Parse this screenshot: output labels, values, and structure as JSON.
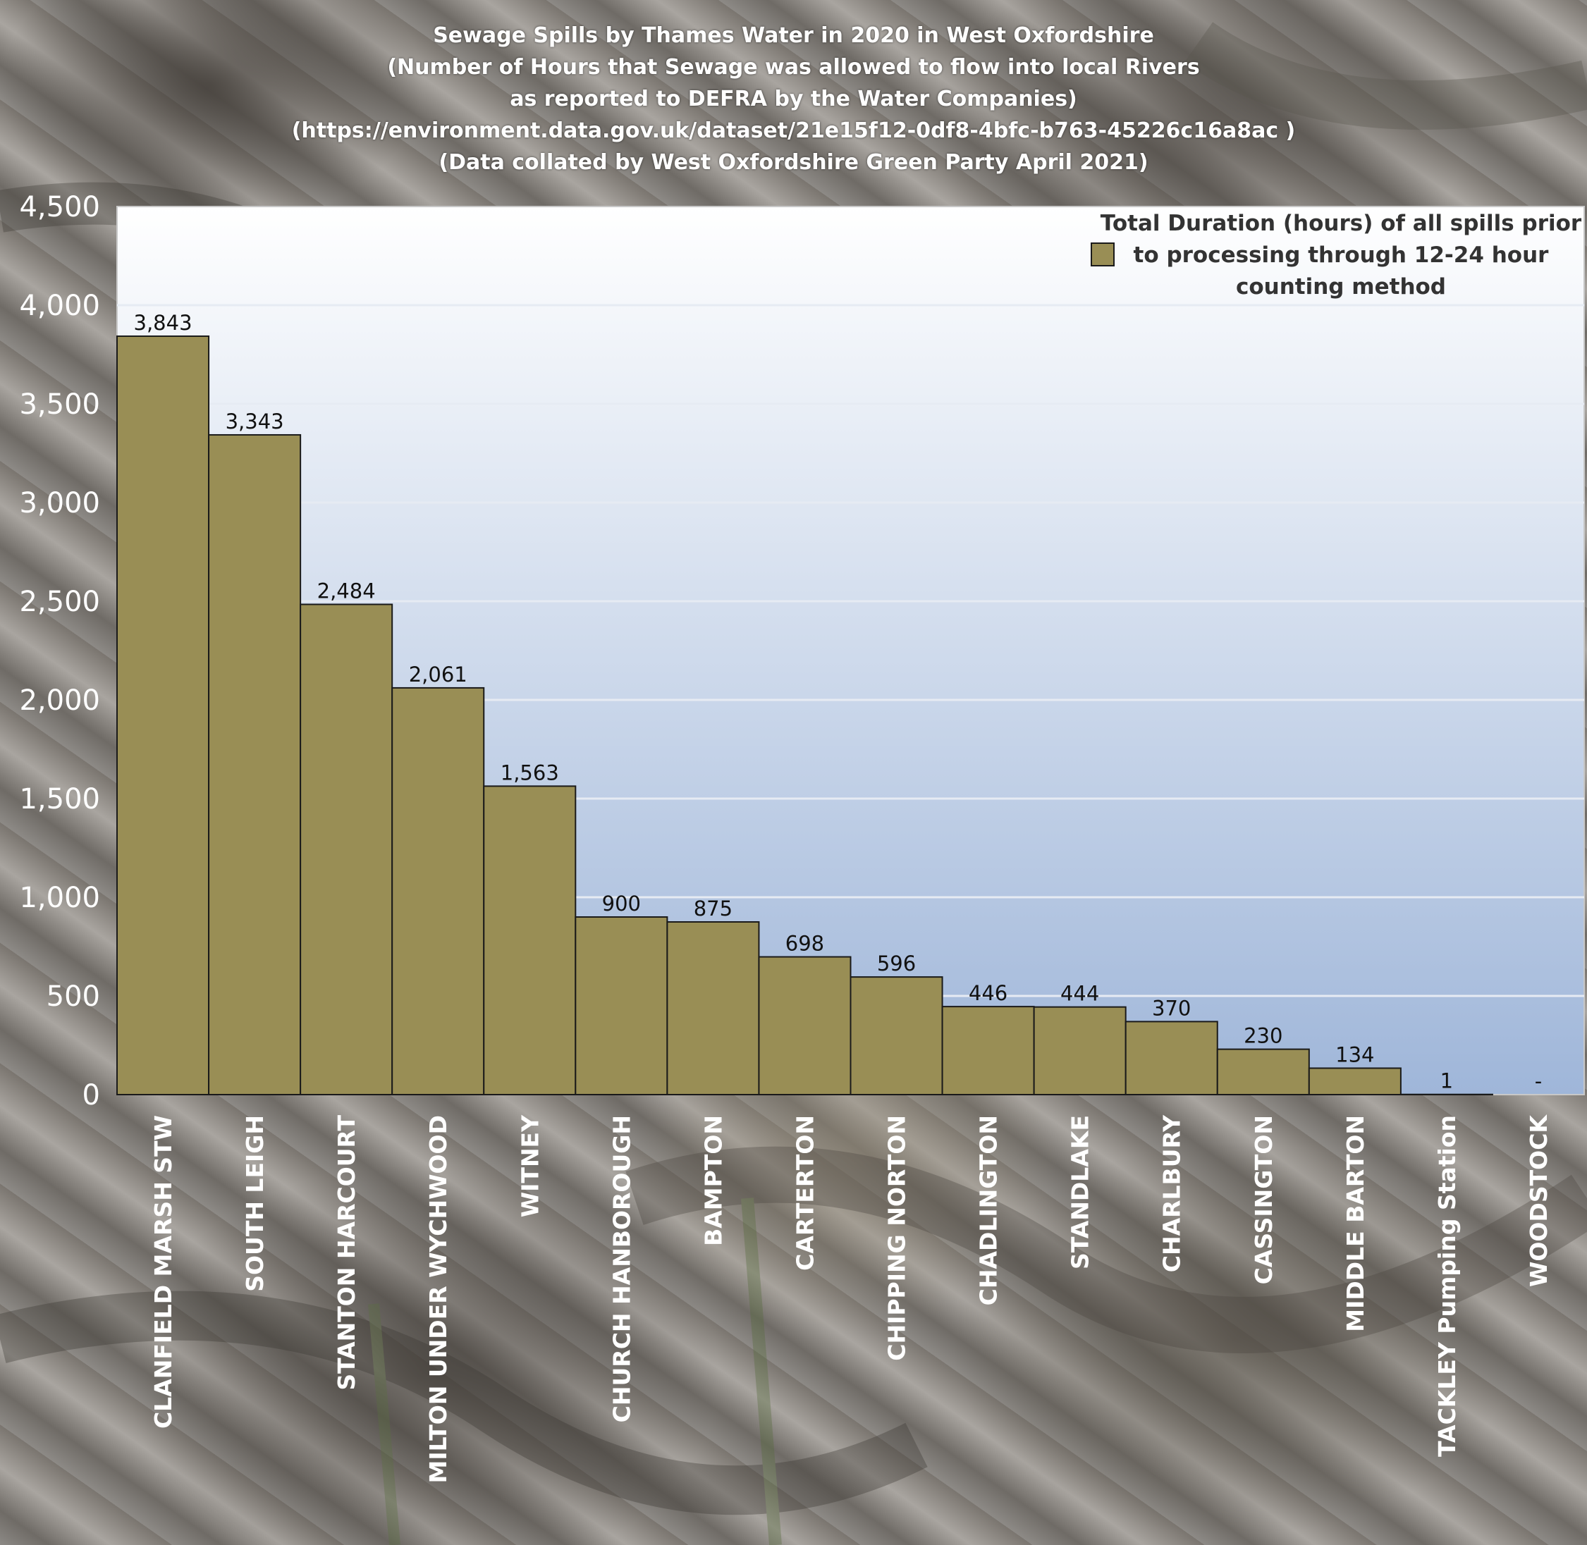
{
  "title_lines": [
    "Sewage Spills by Thames Water in 2020 in West Oxfordshire",
    "(Number of Hours that Sewage was allowed to flow into local Rivers",
    "as reported to DEFRA by the Water Companies)",
    "(https://environment.data.gov.uk/dataset/21e15f12-0df8-4bfc-b763-45226c16a8ac )",
    "(Data collated by West Oxfordshire Green Party April 2021)"
  ],
  "colors": {
    "bar": "#998e55",
    "bar_stroke": "#1a1a1a",
    "plot_top": "#ffffff",
    "plot_bottom": "#9fb6d9",
    "grid": "#e6ebf3"
  },
  "chart_data": {
    "type": "bar",
    "title": "Sewage Spills by Thames Water in 2020 in West Oxfordshire",
    "categories": [
      "CLANFIELD MARSH STW",
      "SOUTH LEIGH",
      "STANTON HARCOURT",
      "MILTON UNDER WYCHWOOD",
      "WITNEY",
      "CHURCH HANBOROUGH",
      "BAMPTON",
      "CARTERTON",
      "CHIPPING NORTON",
      "CHADLINGTON",
      "STANDLAKE",
      "CHARLBURY",
      "CASSINGTON",
      "MIDDLE BARTON",
      "TACKLEY Pumping Station",
      "WOODSTOCK"
    ],
    "series": [
      {
        "name": "Total Duration (hours) of all spills prior to processing through 12-24 hour counting method",
        "values": [
          3843,
          3343,
          2484,
          2061,
          1563,
          900,
          875,
          698,
          596,
          446,
          444,
          370,
          230,
          134,
          1,
          0
        ]
      }
    ],
    "data_labels": [
      "3,843",
      "3,343",
      "2,484",
      "2,061",
      "1,563",
      "900",
      "875",
      "698",
      "596",
      "446",
      "444",
      "370",
      "230",
      "134",
      "1",
      "-"
    ],
    "yticks": [
      "0",
      "500",
      "1,000",
      "1,500",
      "2,000",
      "2,500",
      "3,000",
      "3,500",
      "4,000",
      "4,500"
    ],
    "ylim": [
      0,
      4500
    ],
    "grid": true,
    "legend_position": "top-right",
    "legend_lines": [
      "Total Duration (hours) of all spills prior",
      "to processing through 12-24 hour",
      "counting method"
    ]
  }
}
